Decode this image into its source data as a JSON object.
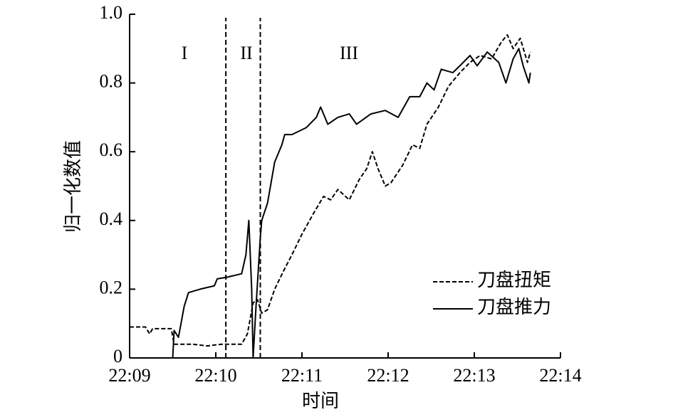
{
  "chart_data": {
    "type": "line",
    "xlabel": "时间",
    "ylabel": "归一化数值",
    "xlim": [
      "22:09",
      "22:14"
    ],
    "xticks": [
      "22:09",
      "22:10",
      "22:11",
      "22:12",
      "22:13",
      "22:14"
    ],
    "ylim": [
      0,
      1
    ],
    "yticks": [
      0,
      0.2,
      0.4,
      0.6,
      0.8,
      {
        "value": 1,
        "label": "1.0"
      }
    ],
    "vlines": [
      "22:10:07",
      "22:10:31"
    ],
    "annotations": [
      "I",
      "II",
      "III"
    ],
    "legend": "lower right",
    "series": [
      {
        "name": "刀盘扭矩",
        "color": "#000000",
        "linestyle": "dashed",
        "x": [
          "22:09:00",
          "22:09:11",
          "22:09:14",
          "22:09:16",
          "22:09:29",
          "22:09:31",
          "22:09:44",
          "22:09:54",
          "22:10:04",
          "22:10:18",
          "22:10:22",
          "22:10:26",
          "22:10:29",
          "22:10:32",
          "22:10:36",
          "22:10:41",
          "22:10:48",
          "22:10:53",
          "22:11:00",
          "22:11:08",
          "22:11:15",
          "22:11:20",
          "22:11:25",
          "22:11:33",
          "22:11:40",
          "22:11:45",
          "22:11:49",
          "22:11:53",
          "22:11:58",
          "22:12:02",
          "22:12:10",
          "22:12:17",
          "22:12:22",
          "22:12:27",
          "22:12:35",
          "22:12:42",
          "22:12:50",
          "22:12:57",
          "22:13:04",
          "22:13:12",
          "22:13:19",
          "22:13:23",
          "22:13:27",
          "22:13:32",
          "22:13:37",
          "22:13:39"
        ],
        "values": [
          0.09,
          0.09,
          0.07,
          0.085,
          0.085,
          0.04,
          0.04,
          0.035,
          0.04,
          0.04,
          0.07,
          0.16,
          0.17,
          0.13,
          0.14,
          0.2,
          0.26,
          0.3,
          0.36,
          0.42,
          0.47,
          0.46,
          0.49,
          0.46,
          0.52,
          0.55,
          0.6,
          0.55,
          0.5,
          0.51,
          0.56,
          0.62,
          0.61,
          0.68,
          0.73,
          0.79,
          0.83,
          0.86,
          0.88,
          0.87,
          0.92,
          0.94,
          0.9,
          0.93,
          0.86,
          0.89
        ]
      },
      {
        "name": "刀盘推力",
        "color": "#000000",
        "linestyle": "solid",
        "x": [
          "22:09:30",
          "22:09:31",
          "22:09:34",
          "22:09:38",
          "22:09:41",
          "22:09:49",
          "22:09:59",
          "22:10:01",
          "22:10:08",
          "22:10:18",
          "22:10:21",
          "22:10:23",
          "22:10:25",
          "22:10:26",
          "22:10:28",
          "22:10:31",
          "22:10:32",
          "22:10:36",
          "22:10:41",
          "22:10:46",
          "22:10:48",
          "22:10:53",
          "22:11:03",
          "22:11:10",
          "22:11:13",
          "22:11:18",
          "22:11:25",
          "22:11:33",
          "22:11:38",
          "22:11:48",
          "22:11:58",
          "22:12:07",
          "22:12:15",
          "22:12:22",
          "22:12:27",
          "22:12:32",
          "22:12:37",
          "22:12:45",
          "22:12:50",
          "22:12:57",
          "22:13:02",
          "22:13:09",
          "22:13:17",
          "22:13:22",
          "22:13:27",
          "22:13:31",
          "22:13:34",
          "22:13:38",
          "22:13:39"
        ],
        "values": [
          0,
          0.08,
          0.06,
          0.15,
          0.19,
          0.2,
          0.21,
          0.23,
          0.235,
          0.245,
          0.3,
          0.4,
          0.2,
          0,
          0.15,
          0.35,
          0.4,
          0.45,
          0.57,
          0.62,
          0.65,
          0.65,
          0.67,
          0.7,
          0.73,
          0.68,
          0.7,
          0.71,
          0.68,
          0.71,
          0.72,
          0.7,
          0.76,
          0.76,
          0.8,
          0.78,
          0.84,
          0.83,
          0.85,
          0.88,
          0.85,
          0.89,
          0.86,
          0.8,
          0.87,
          0.9,
          0.85,
          0.8,
          0.83
        ]
      }
    ]
  }
}
